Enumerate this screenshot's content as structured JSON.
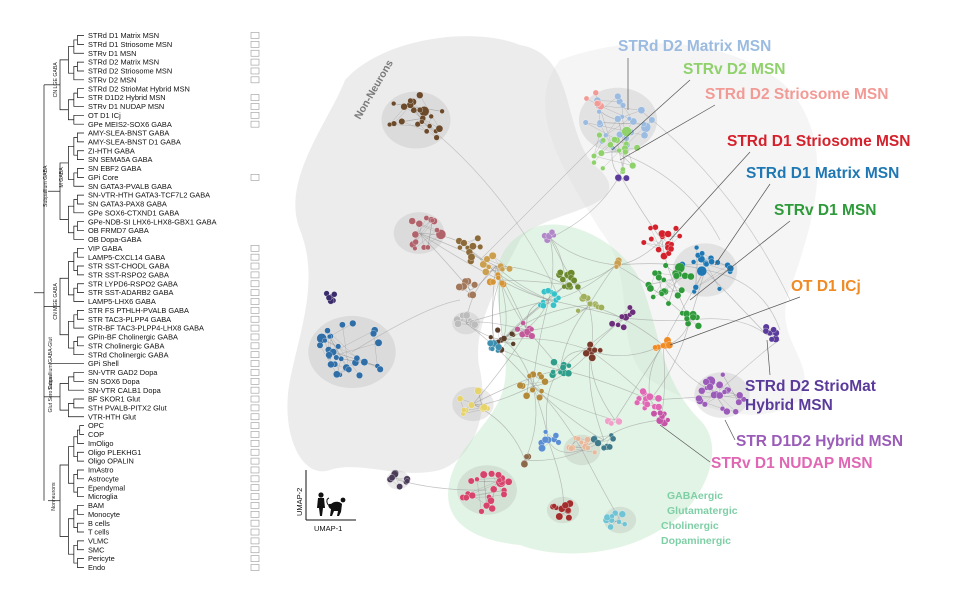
{
  "taxonomy": {
    "items": [
      {
        "label": "STRd D1 Matrix MSN",
        "box": true
      },
      {
        "label": "STRd D1 Striosome MSN",
        "box": true
      },
      {
        "label": "STRv D1 MSN",
        "box": true
      },
      {
        "label": "STRd D2 Matrix MSN",
        "box": true
      },
      {
        "label": "STRd D2 Striosome MSN",
        "box": true
      },
      {
        "label": "STRv D2 MSN",
        "box": true
      },
      {
        "label": "STRd D2 StrioMat Hybrid MSN",
        "box": false
      },
      {
        "label": "STR D1D2 Hybrid MSN",
        "box": true
      },
      {
        "label": "STRv D1 NUDAP MSN",
        "box": true
      },
      {
        "label": "OT D1 ICj",
        "box": true
      },
      {
        "label": "GPe MEIS2-SOX6 GABA",
        "box": true
      },
      {
        "label": "AMY-SLEA-BNST GABA",
        "box": false
      },
      {
        "label": "AMY-SLEA-BNST D1 GABA",
        "box": false
      },
      {
        "label": "ZI-HTH GABA",
        "box": false
      },
      {
        "label": "SN SEMA5A GABA",
        "box": false
      },
      {
        "label": "SN EBF2 GABA",
        "box": false
      },
      {
        "label": "GPi Core",
        "box": true
      },
      {
        "label": "SN GATA3-PVALB GABA",
        "box": false
      },
      {
        "label": "SN-VTR-HTH GATA3-TCF7L2 GABA",
        "box": false
      },
      {
        "label": "SN GATA3-PAX8 GABA",
        "box": false
      },
      {
        "label": "GPe SOX6-CTXND1 GABA",
        "box": false
      },
      {
        "label": "GPe-NDB-SI LHX6-LHX8-GBX1 GABA",
        "box": false
      },
      {
        "label": "OB FRMD7 GABA",
        "box": false
      },
      {
        "label": "OB Dopa-GABA",
        "box": false
      },
      {
        "label": "VIP GABA",
        "box": true
      },
      {
        "label": "LAMP5-CXCL14 GABA",
        "box": true
      },
      {
        "label": "STR SST-CHODL GABA",
        "box": true
      },
      {
        "label": "STR SST-RSPO2 GABA",
        "box": true
      },
      {
        "label": "STR LYPD6-RSPO2 GABA",
        "box": true
      },
      {
        "label": "STR SST-ADARB2 GABA",
        "box": true
      },
      {
        "label": "LAMP5-LHX6 GABA",
        "box": true
      },
      {
        "label": "STR FS PTHLH-PVALB GABA",
        "box": true
      },
      {
        "label": "STR TAC3-PLPP4 GABA",
        "box": true
      },
      {
        "label": "STR-BF TAC3-PLPP4-LHX8 GABA",
        "box": true
      },
      {
        "label": "GPin-BF Cholinergic GABA",
        "box": true
      },
      {
        "label": "STR Cholinergic GABA",
        "box": true
      },
      {
        "label": "STRd Cholinergic GABA",
        "box": true
      },
      {
        "label": "GPi Shell",
        "box": true
      },
      {
        "label": "SN-VTR GAD2 Dopa",
        "box": true
      },
      {
        "label": "SN SOX6 Dopa",
        "box": true
      },
      {
        "label": "SN-VTR CALB1 Dopa",
        "box": true
      },
      {
        "label": "BF SKOR1 Glut",
        "box": true
      },
      {
        "label": "STH PVALB-PITX2 Glut",
        "box": true
      },
      {
        "label": "VTR-HTH Glut",
        "box": true
      },
      {
        "label": "OPC",
        "box": true
      },
      {
        "label": "COP",
        "box": true
      },
      {
        "label": "ImOligo",
        "box": true
      },
      {
        "label": "Oligo PLEKHG1",
        "box": true
      },
      {
        "label": "Oligo OPALIN",
        "box": true
      },
      {
        "label": "ImAstro",
        "box": true
      },
      {
        "label": "Astrocyte",
        "box": true
      },
      {
        "label": "Ependymal",
        "box": true
      },
      {
        "label": "Microglia",
        "box": true
      },
      {
        "label": "BAM",
        "box": true
      },
      {
        "label": "Monocyte",
        "box": true
      },
      {
        "label": "B cells",
        "box": true
      },
      {
        "label": "T cells",
        "box": true
      },
      {
        "label": "VLMC",
        "box": true
      },
      {
        "label": "SMC",
        "box": true
      },
      {
        "label": "Pericyte",
        "box": true
      },
      {
        "label": "Endo",
        "box": true
      }
    ],
    "groups": [
      {
        "label": "CN LGE GABA",
        "start": 0,
        "end": 10
      },
      {
        "label": "Subpallium GABA",
        "start": 11,
        "end": 23
      },
      {
        "label": "M GABA",
        "start": 13,
        "end": 19
      },
      {
        "label": "CN MGE GABA",
        "start": 24,
        "end": 36
      },
      {
        "label": "Subpallium GABA-Glut",
        "start": 37,
        "end": 37
      },
      {
        "label": "Glut Sero Dopa",
        "start": 38,
        "end": 43
      },
      {
        "label": "Nonneurons",
        "start": 44,
        "end": 60
      }
    ]
  },
  "umap": {
    "axis_x": "UMAP-1",
    "axis_y": "UMAP-2",
    "region_nonneurons": "Non-Neurons",
    "category_labels": [
      "GABAergic",
      "Glutamatergic",
      "Cholinergic",
      "Dopaminergic"
    ],
    "category_color": "#7fcfa6",
    "labels": [
      {
        "text": "STRd D2 Matrix MSN",
        "color": "#9bbbe0",
        "lines": [
          "STRd D2 Matrix MSN"
        ]
      },
      {
        "text": "STRv D2 MSN",
        "color": "#8fd16b",
        "lines": [
          "STRv D2 MSN"
        ]
      },
      {
        "text": "STRd D2 Striosome MSN",
        "color": "#f29a95",
        "lines": [
          "STRd D2 Striosome MSN"
        ]
      },
      {
        "text": "STRd D1 Striosome MSN",
        "color": "#d4212b",
        "lines": [
          "STRd D1 Striosome MSN"
        ]
      },
      {
        "text": "STRd D1 Matrix MSN",
        "color": "#1f78b4",
        "lines": [
          "STRd D1 Matrix MSN"
        ]
      },
      {
        "text": "STRv D1 MSN",
        "color": "#2f9a3a",
        "lines": [
          "STRv D1 MSN"
        ]
      },
      {
        "text": "OT D1 ICj",
        "color": "#f08a24",
        "lines": [
          "OT D1 ICj"
        ]
      },
      {
        "text": "STRd D2 StrioMat Hybrid MSN",
        "color": "#5a3a9a",
        "lines": [
          "STRd D2 StrioMat",
          "Hybrid MSN"
        ]
      },
      {
        "text": "STR D1D2 Hybrid MSN",
        "color": "#9a5cb8",
        "lines": [
          "STR D1D2 Hybrid MSN"
        ]
      },
      {
        "text": "STRv D1 NUDAP MSN",
        "color": "#e067b3",
        "lines": [
          "STRv D1 NUDAP MSN"
        ]
      }
    ]
  }
}
